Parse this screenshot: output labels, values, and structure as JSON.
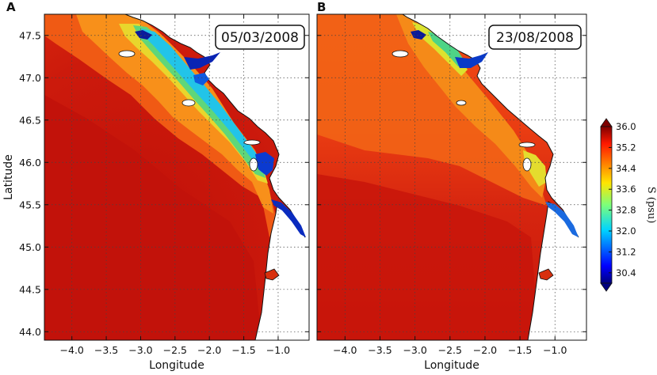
{
  "chart_data": [
    {
      "type": "heatmap",
      "panel_label": "A",
      "date": "05/03/2008",
      "xlabel": "Longitude",
      "ylabel": "Latitude",
      "xlim": [
        -4.4,
        -0.55
      ],
      "ylim": [
        43.9,
        47.75
      ],
      "xticks": [
        -4.0,
        -3.5,
        -3.0,
        -2.5,
        -2.0,
        -1.5,
        -1.0
      ],
      "xtick_labels": [
        "−4.0",
        "−3.5",
        "−3.0",
        "−2.5",
        "−2.0",
        "−1.5",
        "−1.0"
      ],
      "yticks": [
        44.0,
        44.5,
        45.0,
        45.5,
        46.0,
        46.5,
        47.0,
        47.5
      ],
      "ytick_labels": [
        "44.0",
        "44.5",
        "45.0",
        "45.5",
        "46.0",
        "46.5",
        "47.0",
        "47.5"
      ],
      "grid": true,
      "variable": "S (psu)",
      "description_values": {
        "open_ocean_salinity": 35.6,
        "shelf_salinity": 34.6,
        "coastal_min_salinity": 30.2
      }
    },
    {
      "type": "heatmap",
      "panel_label": "B",
      "date": "23/08/2008",
      "xlabel": "Longitude",
      "ylabel": "",
      "xlim": [
        -4.4,
        -0.55
      ],
      "ylim": [
        43.9,
        47.75
      ],
      "xticks": [
        -4.0,
        -3.5,
        -3.0,
        -2.5,
        -2.0,
        -1.5,
        -1.0
      ],
      "xtick_labels": [
        "−4.0",
        "−3.5",
        "−3.0",
        "−2.5",
        "−2.0",
        "−1.5",
        "−1.0"
      ],
      "yticks": [
        44.0,
        44.5,
        45.0,
        45.5,
        46.0,
        46.5,
        47.0,
        47.5
      ],
      "grid": true,
      "variable": "S (psu)",
      "description_values": {
        "open_ocean_salinity": 35.5,
        "shelf_salinity": 35.0,
        "coastal_min_salinity": 31.0
      }
    }
  ],
  "colorbar": {
    "label": "S (psu)",
    "min": 30.0,
    "max": 36.0,
    "ticks": [
      30.4,
      31.2,
      32.0,
      32.8,
      33.6,
      34.4,
      35.2,
      36.0
    ],
    "tick_labels": [
      "30.4",
      "31.2",
      "32.0",
      "32.8",
      "33.6",
      "34.4",
      "35.2",
      "36.0"
    ],
    "colormap": "jet",
    "extend": "both"
  },
  "colors": {
    "ocean_deep": "#c4120d",
    "ocean_mid": "#e63a12",
    "shelf_warm": "#f46a16",
    "plume_orange": "#f8a018",
    "plume_yellow": "#dfe232",
    "plume_green": "#5ed67a",
    "plume_cyan": "#20c8e6",
    "plume_blue": "#0a4fd2",
    "plume_navy": "#0a0f8c",
    "land": "#ffffff",
    "grid": "#555555"
  }
}
